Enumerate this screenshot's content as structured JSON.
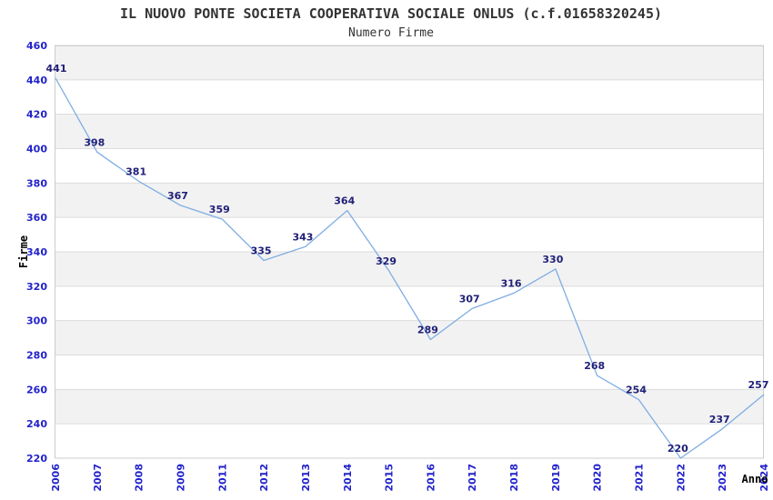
{
  "header": {
    "title": "IL NUOVO PONTE SOCIETA COOPERATIVA SOCIALE ONLUS (c.f.01658320245)",
    "subtitle": "Numero Firme"
  },
  "chart_data": {
    "type": "line",
    "title": "IL NUOVO PONTE SOCIETA COOPERATIVA SOCIALE ONLUS (c.f.01658320245)",
    "subtitle": "Numero Firme",
    "xlabel": "Anno",
    "ylabel": "Firme",
    "x": [
      "2006",
      "2007",
      "2008",
      "2009",
      "2011",
      "2012",
      "2013",
      "2014",
      "2015",
      "2016",
      "2017",
      "2018",
      "2019",
      "2020",
      "2021",
      "2022",
      "2023",
      "2024"
    ],
    "series": [
      {
        "name": "Numero Firme",
        "values": [
          441,
          398,
          381,
          367,
          359,
          335,
          343,
          364,
          329,
          289,
          307,
          316,
          330,
          268,
          254,
          220,
          237,
          257
        ]
      }
    ],
    "ylim": [
      220,
      460
    ],
    "y_ticks": [
      220,
      240,
      260,
      280,
      300,
      320,
      340,
      360,
      380,
      400,
      420,
      440,
      460
    ],
    "grid": "horizontal",
    "legend_position": "none",
    "colors": {
      "line": "#7fade3",
      "band_alt": "#f2f2f2",
      "band_base": "#ffffff",
      "gridline": "#dcdcdc",
      "plot_border": "#cccccc",
      "tick_label": "#2222cc",
      "value_label": "#202078",
      "title_text": "#333333",
      "axis_title_text": "#000000"
    }
  }
}
